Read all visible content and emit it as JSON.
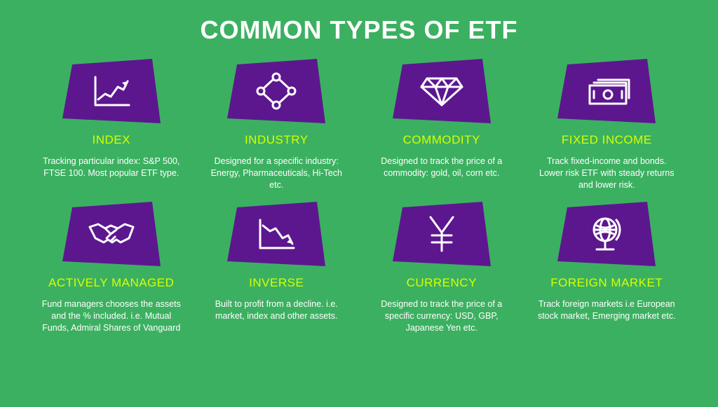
{
  "background_color": "#3cb061",
  "shape_fill": "#5c178f",
  "icon_stroke": "#ffffff",
  "title_color": "#ffffff",
  "label_color": "#d6ff00",
  "desc_color": "#ffffff",
  "title": "COMMON TYPES OF ETF",
  "title_fontsize": 36,
  "label_fontsize": 17,
  "desc_fontsize": 12.5,
  "grid": {
    "cols": 4,
    "rows": 2
  },
  "cards": [
    {
      "icon": "chart-up",
      "title": "INDEX",
      "desc": "Tracking particular index: S&P 500, FTSE 100. Most popular ETF type."
    },
    {
      "icon": "nodes",
      "title": "INDUSTRY",
      "desc": "Designed for a specific industry: Energy, Pharmaceuticals, Hi-Tech etc."
    },
    {
      "icon": "diamond",
      "title": "COMMODITY",
      "desc": "Designed to track the price of a commodity: gold, oil, corn etc."
    },
    {
      "icon": "cash",
      "title": "FIXED INCOME",
      "desc": "Track fixed-income and bonds. Lower risk ETF with steady returns and lower risk."
    },
    {
      "icon": "handshake",
      "title": "ACTIVELY MANAGED",
      "desc": "Fund managers chooses the assets and the % included. i.e. Mutual Funds, Admiral Shares of Vanguard"
    },
    {
      "icon": "chart-down",
      "title": "INVERSE",
      "desc": "Built to profit from a decline. i.e. market, index and other assets."
    },
    {
      "icon": "yen",
      "title": "CURRENCY",
      "desc": "Designed to track the price of a specific currency: USD, GBP, Japanese Yen etc."
    },
    {
      "icon": "globe",
      "title": "FOREIGN MARKET",
      "desc": "Track foreign markets i.e European stock market, Emerging market etc."
    }
  ]
}
